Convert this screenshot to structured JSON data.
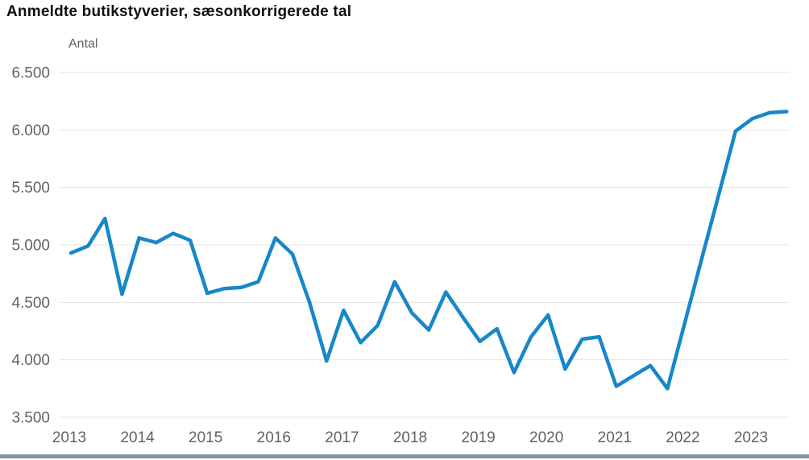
{
  "header": {
    "title": "Anmeldte butikstyverier, sæsonkorrigerede tal"
  },
  "chart_data": {
    "type": "line",
    "title": "Anmeldte butikstyverier, sæsonkorrigerede tal",
    "xlabel": "",
    "ylabel": "Antal",
    "grid": true,
    "legend_position": "none",
    "ylim": [
      3500,
      6500
    ],
    "line_color": "#1787c9",
    "y_ticks": [
      {
        "value": 6500,
        "label": "6.500"
      },
      {
        "value": 6000,
        "label": "6.000"
      },
      {
        "value": 5500,
        "label": "5.500"
      },
      {
        "value": 5000,
        "label": "5.000"
      },
      {
        "value": 4500,
        "label": "4.500"
      },
      {
        "value": 4000,
        "label": "4.000"
      },
      {
        "value": 3500,
        "label": "3.500"
      }
    ],
    "x_ticks": [
      "2013",
      "2014",
      "2015",
      "2016",
      "2017",
      "2018",
      "2019",
      "2020",
      "2021",
      "2022",
      "2023"
    ],
    "series": [
      {
        "name": "Anmeldte butikstyverier, sæsonkorrigerede tal",
        "color": "#1787c9",
        "points": [
          {
            "x": "2013K1",
            "y": 4930
          },
          {
            "x": "2013K2",
            "y": 4990
          },
          {
            "x": "2013K3",
            "y": 5230
          },
          {
            "x": "2013K4",
            "y": 4570
          },
          {
            "x": "2014K1",
            "y": 5060
          },
          {
            "x": "2014K2",
            "y": 5020
          },
          {
            "x": "2014K3",
            "y": 5100
          },
          {
            "x": "2014K4",
            "y": 5040
          },
          {
            "x": "2015K1",
            "y": 4580
          },
          {
            "x": "2015K2",
            "y": 4620
          },
          {
            "x": "2015K3",
            "y": 4630
          },
          {
            "x": "2015K4",
            "y": 4680
          },
          {
            "x": "2016K1",
            "y": 5060
          },
          {
            "x": "2016K2",
            "y": 4920
          },
          {
            "x": "2016K3",
            "y": 4500
          },
          {
            "x": "2016K4",
            "y": 3990
          },
          {
            "x": "2017K1",
            "y": 4430
          },
          {
            "x": "2017K2",
            "y": 4150
          },
          {
            "x": "2017K3",
            "y": 4300
          },
          {
            "x": "2017K4",
            "y": 4680
          },
          {
            "x": "2018K1",
            "y": 4410
          },
          {
            "x": "2018K2",
            "y": 4260
          },
          {
            "x": "2018K3",
            "y": 4590
          },
          {
            "x": "2018K4",
            "y": 4370
          },
          {
            "x": "2019K1",
            "y": 4160
          },
          {
            "x": "2019K2",
            "y": 4270
          },
          {
            "x": "2019K3",
            "y": 3890
          },
          {
            "x": "2019K4",
            "y": 4200
          },
          {
            "x": "2020K1",
            "y": 4390
          },
          {
            "x": "2020K2",
            "y": 3920
          },
          {
            "x": "2020K3",
            "y": 4180
          },
          {
            "x": "2020K4",
            "y": 4200
          },
          {
            "x": "2021K1",
            "y": 3770
          },
          {
            "x": "2021K2",
            "y": 3860
          },
          {
            "x": "2021K3",
            "y": 3950
          },
          {
            "x": "2021K4",
            "y": 3750
          },
          {
            "x": "2022K1",
            "y": 4310
          },
          {
            "x": "2022K2",
            "y": 4870
          },
          {
            "x": "2022K3",
            "y": 5430
          },
          {
            "x": "2022K4",
            "y": 5990
          },
          {
            "x": "2023K1",
            "y": 6100
          },
          {
            "x": "2023K2",
            "y": 6150
          },
          {
            "x": "2023K3",
            "y": 6160
          }
        ]
      }
    ]
  },
  "colors": {
    "line": "#1787c9",
    "axis_text": "#63635b",
    "gridline": "#e5e5e0",
    "bottom_bar": "#7f95a3",
    "title_text": "#111111"
  }
}
